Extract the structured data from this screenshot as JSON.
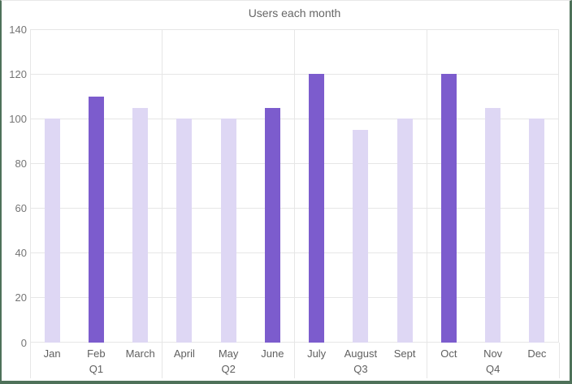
{
  "title": "Users each month",
  "chart_data": {
    "type": "bar",
    "title": "Users each month",
    "categories": [
      "Jan",
      "Feb",
      "March",
      "April",
      "May",
      "June",
      "July",
      "August",
      "Sept",
      "Oct",
      "Nov",
      "Dec"
    ],
    "values": [
      100,
      110,
      105,
      100,
      100,
      105,
      120,
      95,
      100,
      120,
      105,
      100
    ],
    "emphasized": [
      false,
      true,
      false,
      false,
      false,
      true,
      true,
      false,
      false,
      true,
      false,
      false
    ],
    "groups": [
      {
        "label": "Q1",
        "months": [
          "Jan",
          "Feb",
          "March"
        ]
      },
      {
        "label": "Q2",
        "months": [
          "April",
          "May",
          "June"
        ]
      },
      {
        "label": "Q3",
        "months": [
          "July",
          "August",
          "Sept"
        ]
      },
      {
        "label": "Q4",
        "months": [
          "Oct",
          "Nov",
          "Dec"
        ]
      }
    ],
    "ylim": [
      0,
      140
    ],
    "yticks": [
      0,
      20,
      40,
      60,
      80,
      100,
      120,
      140
    ],
    "grid": true,
    "legend": "none",
    "colors": {
      "bar_light": "#ded7f4",
      "bar_dark": "#7c5ccd",
      "gridline": "#e6e6e6",
      "tick_text": "#757575",
      "label_text": "#5f5f5f",
      "title_text": "#666666",
      "frame_border": "#4e7159"
    }
  }
}
